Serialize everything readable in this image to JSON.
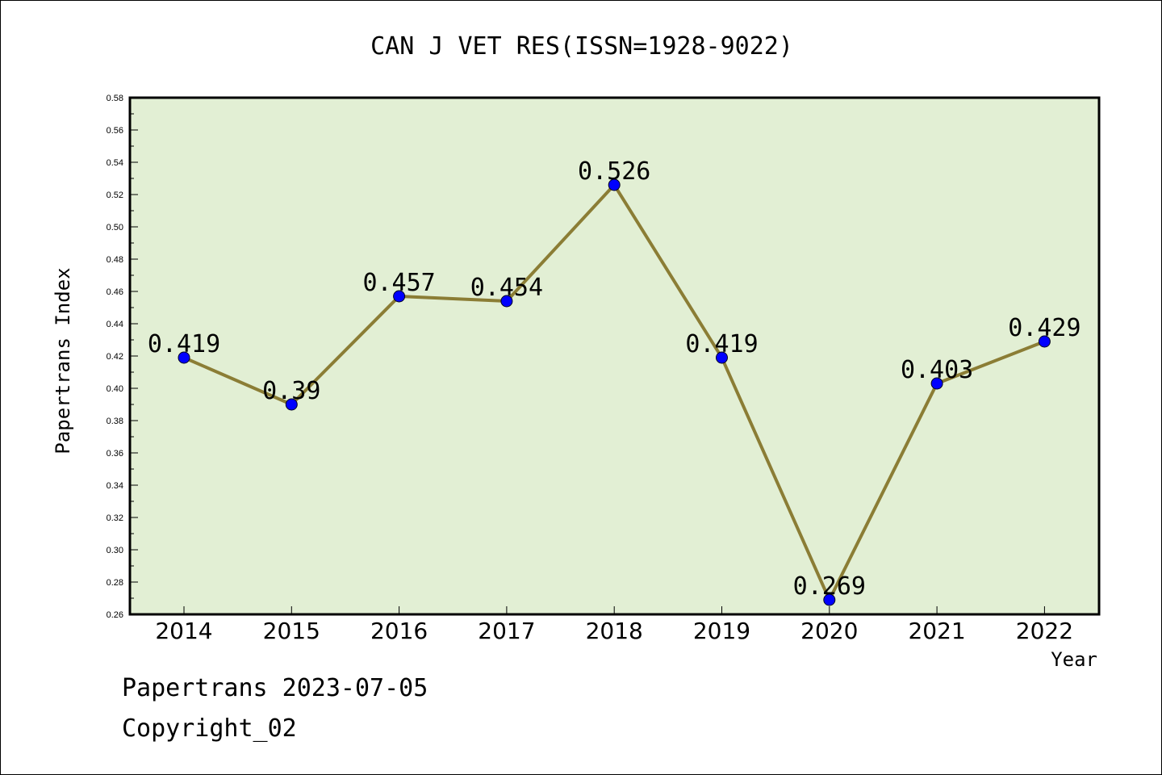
{
  "footer": {
    "line1": "Papertrans 2023-07-05",
    "line2": "Copyright_02"
  },
  "chart_data": {
    "type": "line",
    "title": "CAN J VET RES(ISSN=1928-9022)",
    "xlabel": "Year",
    "ylabel": "Papertrans Index",
    "categories": [
      "2014",
      "2015",
      "2016",
      "2017",
      "2018",
      "2019",
      "2020",
      "2021",
      "2022"
    ],
    "series": [
      {
        "values": [
          0.419,
          0.39,
          0.457,
          0.454,
          0.526,
          0.419,
          0.269,
          0.403,
          0.429
        ],
        "labels": [
          "0.419",
          "0.39",
          "0.457",
          "0.454",
          "0.526",
          "0.419",
          "0.269",
          "0.403",
          "0.429"
        ]
      }
    ],
    "ylim": [
      0.26,
      0.58
    ],
    "yticks": [
      "0.26",
      "0.28",
      "0.30",
      "0.32",
      "0.34",
      "0.36",
      "0.38",
      "0.40",
      "0.42",
      "0.44",
      "0.46",
      "0.48",
      "0.50",
      "0.52",
      "0.54",
      "0.56",
      "0.58"
    ],
    "grid": false,
    "colors": {
      "plot_background": "#e2efd4",
      "line": "#8b7d35",
      "marker": "#0000ff"
    }
  }
}
